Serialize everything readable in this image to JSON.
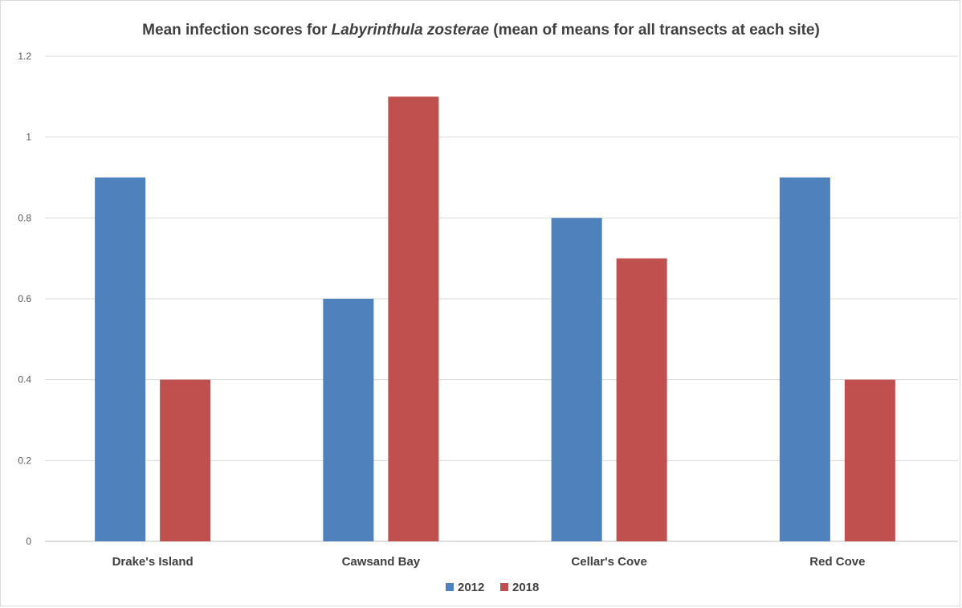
{
  "chart_data": {
    "type": "bar",
    "title_parts": [
      {
        "text": "Mean infection scores for ",
        "italic": false
      },
      {
        "text": "Labyrinthula zosterae",
        "italic": true
      },
      {
        "text": " (mean  of means for all transects at each site)",
        "italic": false
      }
    ],
    "categories": [
      "Drake's Island",
      "Cawsand Bay",
      "Cellar's Cove",
      "Red Cove"
    ],
    "series": [
      {
        "name": "2012",
        "color": "#4f81bd",
        "values": [
          0.9,
          0.6,
          0.8,
          0.9
        ]
      },
      {
        "name": "2018",
        "color": "#c0504d",
        "values": [
          0.4,
          1.1,
          0.7,
          0.4
        ]
      }
    ],
    "ylim": [
      0,
      1.2
    ],
    "yticks": [
      "0",
      "0.2",
      "0.4",
      "0.6",
      "0.8",
      "1",
      "1.2"
    ],
    "ytick_values": [
      0,
      0.2,
      0.4,
      0.6,
      0.8,
      1,
      1.2
    ],
    "grid": true,
    "legend": "bottom"
  }
}
